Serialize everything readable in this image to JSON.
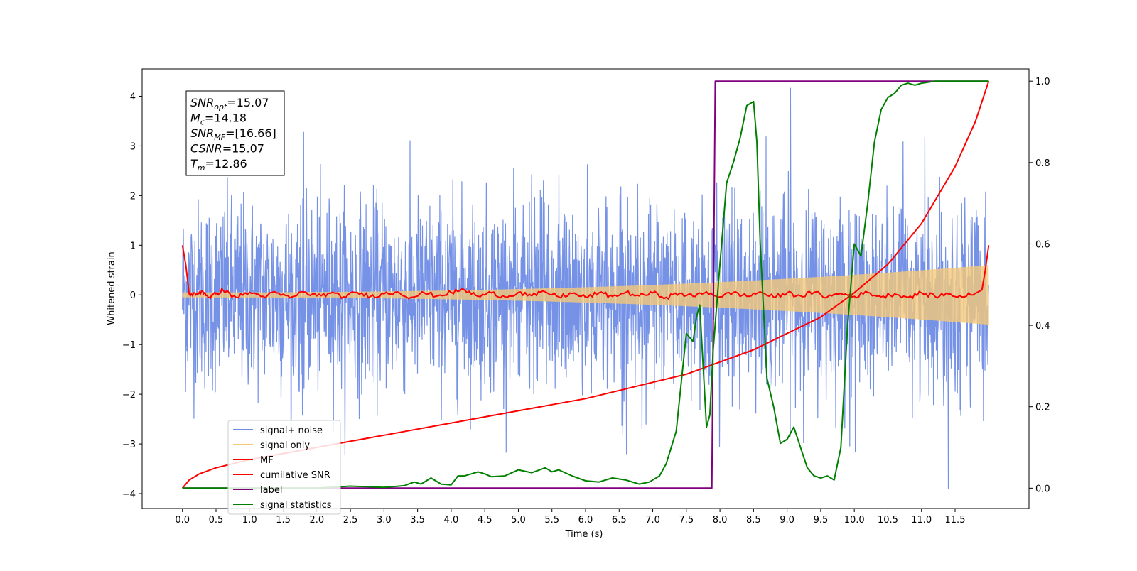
{
  "chart_data": {
    "type": "line",
    "xlabel": "Time (s)",
    "ylabel": "Whitened strain",
    "xlim": [
      -0.6,
      12.6
    ],
    "ylim_left": [
      -4.3,
      4.55
    ],
    "ylim_right": [
      -0.05,
      1.03
    ],
    "x_ticks": [
      0.0,
      0.5,
      1.0,
      1.5,
      2.0,
      2.5,
      3.0,
      3.5,
      4.0,
      4.5,
      5.0,
      5.5,
      6.0,
      6.5,
      7.0,
      7.5,
      8.0,
      8.5,
      9.0,
      9.5,
      10.0,
      10.5,
      11.0,
      11.5
    ],
    "x_tick_labels": [
      "0.0",
      "0.5",
      "1.0",
      "1.5",
      "2.0",
      "2.5",
      "3.0",
      "3.5",
      "4.0",
      "4.5",
      "5.0",
      "5.5",
      "6.0",
      "6.5",
      "7.0",
      "7.5",
      "8.0",
      "8.5",
      "9.0",
      "9.5",
      "10.0",
      "10.5",
      "11.0",
      "11.5"
    ],
    "y_ticks_left": [
      -4,
      -3,
      -2,
      -1,
      0,
      1,
      2,
      3,
      4
    ],
    "y_tick_labels_left": [
      "−4",
      "−3",
      "−2",
      "−1",
      "0",
      "1",
      "2",
      "3",
      "4"
    ],
    "y_ticks_right": [
      0.0,
      0.2,
      0.4,
      0.6,
      0.8,
      1.0
    ],
    "y_tick_labels_right": [
      "0.0",
      "0.2",
      "0.4",
      "0.6",
      "0.8",
      "1.0"
    ],
    "grid": false,
    "legend_position": "lower-left",
    "colors": {
      "signal_noise": "#6f8ce6",
      "signal_only": "#f5c97a",
      "mf": "#ff0000",
      "cumulative_snr": "#ff0000",
      "label": "#800080",
      "signal_statistics": "#008000"
    },
    "series": [
      {
        "name": "signal+ noise",
        "axis": "left",
        "t_start": 0.0,
        "t_end": 12.0,
        "range_min": -3.3,
        "range_max": 3.3,
        "peak": {
          "x": 9.05,
          "y": 4.17
        },
        "min_spike": {
          "x": 11.4,
          "y": -3.9
        }
      },
      {
        "name": "signal only",
        "axis": "left",
        "t_start": 0.0,
        "t_end": 12.0,
        "amplitude_start": 0.05,
        "amplitude_end": 0.6
      },
      {
        "name": "MF",
        "axis": "left",
        "x": [
          0.0,
          0.05,
          0.1,
          0.2,
          0.3,
          0.4,
          0.5,
          0.6,
          0.8,
          1.0,
          1.2,
          1.4,
          1.6,
          1.8,
          2.0,
          2.2,
          2.4,
          2.6,
          2.8,
          3.0,
          3.2,
          3.4,
          3.6,
          3.8,
          4.0,
          4.2,
          4.4,
          4.6,
          4.8,
          5.0,
          5.2,
          5.4,
          5.6,
          5.8,
          6.0,
          6.2,
          6.4,
          6.6,
          6.8,
          7.0,
          7.2,
          7.4,
          7.6,
          7.8,
          8.0,
          8.2,
          8.4,
          8.6,
          8.8,
          9.0,
          9.2,
          9.4,
          9.6,
          9.8,
          10.0,
          10.2,
          10.4,
          10.6,
          10.8,
          11.0,
          11.2,
          11.4,
          11.6,
          11.8,
          11.9,
          11.95,
          12.0
        ],
        "y": [
          1.0,
          0.6,
          0.02,
          0.0,
          0.08,
          -0.05,
          0.02,
          0.1,
          -0.05,
          0.05,
          -0.03,
          0.04,
          -0.06,
          0.06,
          -0.02,
          0.03,
          -0.04,
          0.05,
          -0.03,
          0.02,
          0.06,
          -0.05,
          0.04,
          -0.02,
          0.05,
          0.1,
          -0.03,
          0.04,
          -0.04,
          0.05,
          -0.02,
          0.06,
          -0.04,
          0.03,
          -0.05,
          0.04,
          -0.03,
          0.05,
          -0.02,
          0.04,
          -0.05,
          0.03,
          -0.03,
          0.06,
          -0.04,
          0.05,
          -0.03,
          0.06,
          -0.05,
          0.04,
          -0.02,
          0.05,
          -0.04,
          0.03,
          -0.03,
          0.05,
          -0.04,
          0.02,
          -0.05,
          0.04,
          -0.03,
          0.02,
          -0.04,
          0.03,
          0.1,
          0.5,
          1.0
        ]
      },
      {
        "name": "cumilative SNR",
        "axis": "right",
        "x": [
          0.0,
          0.05,
          0.1,
          0.25,
          0.5,
          1.0,
          1.5,
          2.0,
          2.5,
          3.0,
          3.5,
          4.0,
          4.5,
          5.0,
          5.5,
          6.0,
          6.5,
          7.0,
          7.5,
          8.0,
          8.5,
          9.0,
          9.5,
          10.0,
          10.5,
          11.0,
          11.5,
          11.8,
          12.0
        ],
        "y": [
          0.0,
          0.01,
          0.02,
          0.035,
          0.05,
          0.07,
          0.085,
          0.1,
          0.115,
          0.13,
          0.145,
          0.16,
          0.175,
          0.19,
          0.205,
          0.22,
          0.24,
          0.26,
          0.28,
          0.31,
          0.34,
          0.38,
          0.42,
          0.48,
          0.55,
          0.65,
          0.79,
          0.9,
          1.0
        ]
      },
      {
        "name": "label",
        "axis": "right",
        "x": [
          0.0,
          7.88,
          7.93,
          12.0
        ],
        "y": [
          0.0,
          0.0,
          1.0,
          1.0
        ]
      },
      {
        "name": "signal statistics",
        "axis": "right",
        "x": [
          0.0,
          1.0,
          2.0,
          2.5,
          3.0,
          3.3,
          3.45,
          3.55,
          3.7,
          3.85,
          4.0,
          4.1,
          4.2,
          4.4,
          4.5,
          4.6,
          4.8,
          5.0,
          5.2,
          5.4,
          5.5,
          5.6,
          5.8,
          6.0,
          6.2,
          6.4,
          6.6,
          6.8,
          6.95,
          7.1,
          7.2,
          7.35,
          7.5,
          7.6,
          7.65,
          7.7,
          7.8,
          7.85,
          7.9,
          8.0,
          8.1,
          8.2,
          8.3,
          8.4,
          8.5,
          8.55,
          8.6,
          8.7,
          8.8,
          8.9,
          9.0,
          9.1,
          9.2,
          9.3,
          9.4,
          9.5,
          9.6,
          9.7,
          9.8,
          9.9,
          10.0,
          10.1,
          10.2,
          10.3,
          10.4,
          10.5,
          10.6,
          10.7,
          10.8,
          10.9,
          11.0,
          11.2,
          11.5,
          11.8,
          12.0
        ],
        "y": [
          0.0,
          0.0,
          0.0,
          0.005,
          0.002,
          0.006,
          0.015,
          0.01,
          0.025,
          0.01,
          0.008,
          0.03,
          0.03,
          0.04,
          0.035,
          0.028,
          0.03,
          0.045,
          0.038,
          0.05,
          0.04,
          0.045,
          0.03,
          0.018,
          0.015,
          0.025,
          0.02,
          0.01,
          0.015,
          0.03,
          0.06,
          0.14,
          0.38,
          0.36,
          0.42,
          0.45,
          0.15,
          0.18,
          0.34,
          0.55,
          0.75,
          0.8,
          0.86,
          0.94,
          0.95,
          0.85,
          0.6,
          0.27,
          0.2,
          0.11,
          0.12,
          0.15,
          0.1,
          0.05,
          0.03,
          0.025,
          0.03,
          0.02,
          0.1,
          0.4,
          0.6,
          0.57,
          0.7,
          0.85,
          0.93,
          0.96,
          0.97,
          0.99,
          0.995,
          0.99,
          0.995,
          1.0,
          1.0,
          1.0,
          1.0
        ]
      }
    ],
    "annotation": {
      "lines": [
        {
          "base": "SNR",
          "sub": "opt",
          "rest": "=15.07"
        },
        {
          "base": "M",
          "sub": "c",
          "rest": "=14.18"
        },
        {
          "base": "SNR",
          "sub": "MF",
          "rest": "=[16.66]"
        },
        {
          "base": "CSNR",
          "sub": "",
          "rest": "=15.07"
        },
        {
          "base": "T",
          "sub": "m",
          "rest": "=12.86"
        }
      ]
    }
  }
}
